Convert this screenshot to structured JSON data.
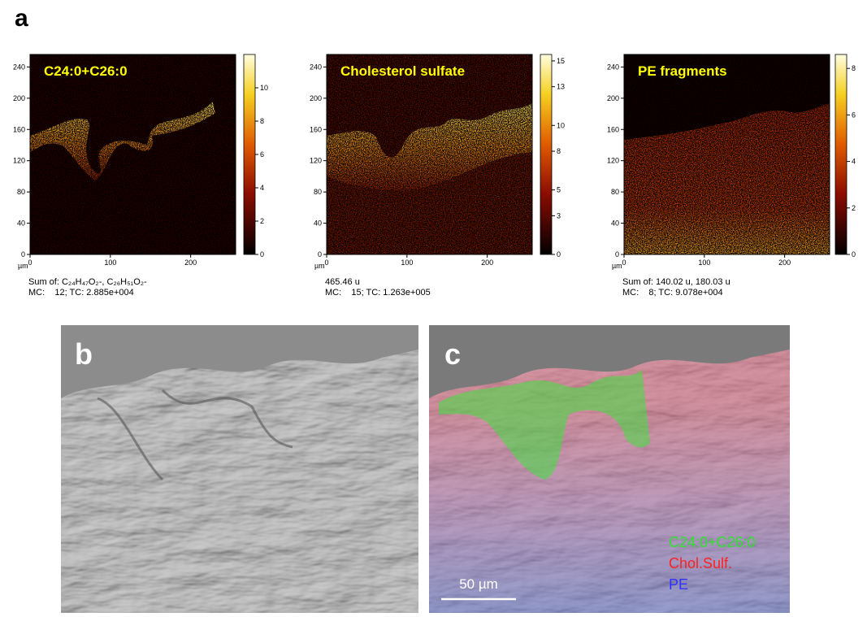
{
  "panel_a": {
    "label": "a",
    "axis_unit": "µm",
    "xlim": [
      0,
      256
    ],
    "ylim": [
      0,
      256
    ],
    "xticks": [
      0,
      100,
      200
    ],
    "yticks": [
      0,
      40,
      80,
      120,
      160,
      200,
      240
    ],
    "maps": [
      {
        "title": "C24:0+C26:0",
        "colorbar_lim": [
          0,
          12
        ],
        "colorbar_ticks": [
          0,
          2,
          4,
          6,
          8,
          10
        ],
        "caption": [
          "Sum of: C₂₄H₄₇O₂-, C₂₆H₅₁O₂-",
          "MC:    12; TC: 2.885e+004"
        ]
      },
      {
        "title": "Cholesterol sulfate",
        "colorbar_lim": [
          0,
          15.5
        ],
        "colorbar_ticks": [
          0,
          3,
          5,
          8,
          10,
          13,
          15
        ],
        "caption": [
          "465.46 u",
          "MC:    15; TC: 1.263e+005"
        ]
      },
      {
        "title": "PE fragments",
        "colorbar_lim": [
          0,
          8.6
        ],
        "colorbar_ticks": [
          0,
          2,
          4,
          6,
          8
        ],
        "caption": [
          "Sum of: 140.02 u, 180.03 u",
          "MC:    8; TC: 9.078e+004"
        ]
      }
    ]
  },
  "panel_b": {
    "label": "b"
  },
  "panel_c": {
    "label": "c",
    "legend": [
      "C24:0+C26:0",
      "Chol.Sulf.",
      "PE"
    ],
    "scale_bar": "50 µm"
  }
}
